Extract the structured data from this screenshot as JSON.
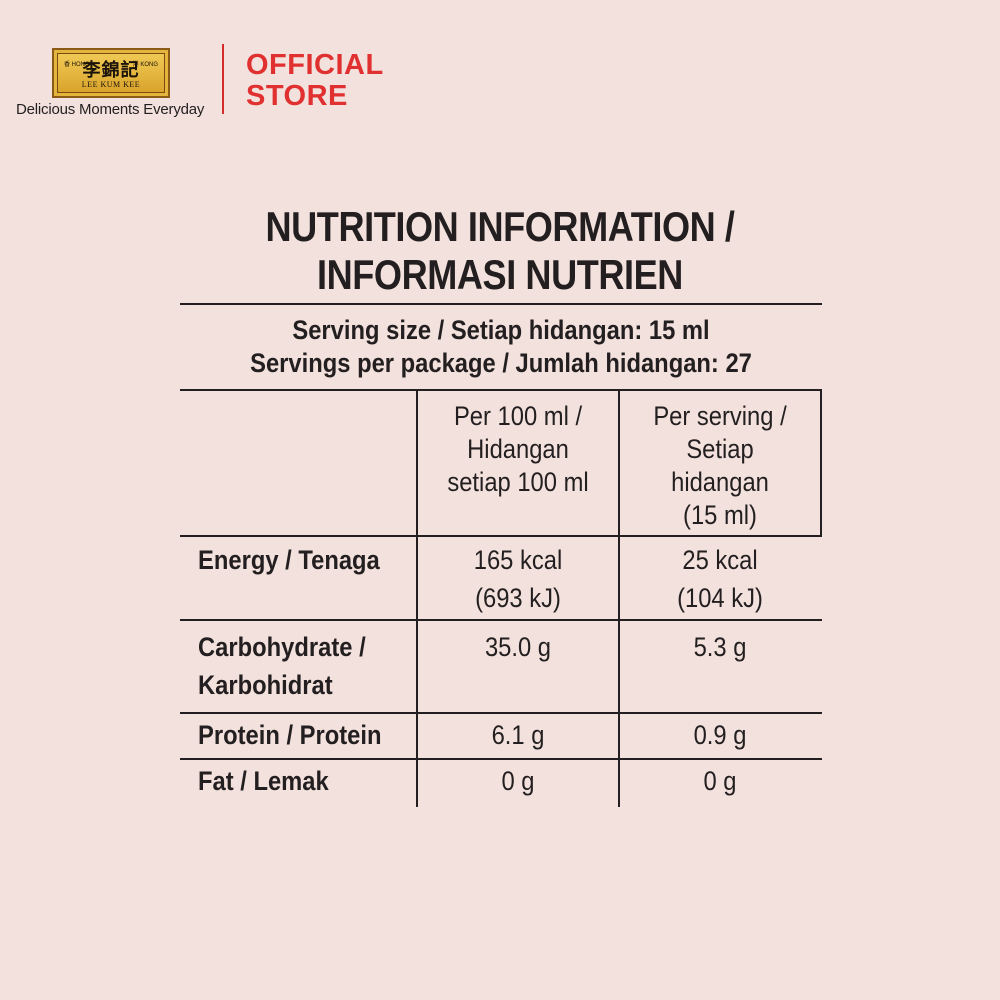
{
  "header": {
    "logo": {
      "chinese": "李錦記",
      "left_mark": "香 HONG",
      "right_mark": "港 KONG",
      "english": "LEE KUM KEE"
    },
    "tagline": "Delicious Moments Everyday",
    "store_line1": "OFFICIAL",
    "store_line2": "STORE",
    "accent_color": "#e03030"
  },
  "nutrition": {
    "title_line1": "NUTRITION INFORMATION /",
    "title_line2": "INFORMASI NUTRIEN",
    "serving_size": "Serving size / Setiap hidangan: 15 ml",
    "servings_per_package": "Servings per package / Jumlah hidangan: 27",
    "columns": [
      {
        "lines": [
          "Per 100 ml /",
          "Hidangan",
          "setiap 100 ml"
        ]
      },
      {
        "lines": [
          "Per serving /",
          "Setiap",
          "hidangan",
          "(15 ml)"
        ]
      }
    ],
    "rows": [
      {
        "label": [
          "Energy / Tenaga"
        ],
        "per100": [
          "165 kcal",
          "(693 kJ)"
        ],
        "perserving": [
          "25 kcal",
          "(104 kJ)"
        ]
      },
      {
        "label": [
          "Carbohydrate /",
          "Karbohidrat"
        ],
        "per100": [
          "35.0 g"
        ],
        "perserving": [
          "5.3 g"
        ]
      },
      {
        "label": [
          "Protein / Protein"
        ],
        "per100": [
          "6.1 g"
        ],
        "perserving": [
          "0.9 g"
        ]
      },
      {
        "label": [
          "Fat / Lemak"
        ],
        "per100": [
          "0 g"
        ],
        "perserving": [
          "0 g"
        ]
      }
    ]
  }
}
